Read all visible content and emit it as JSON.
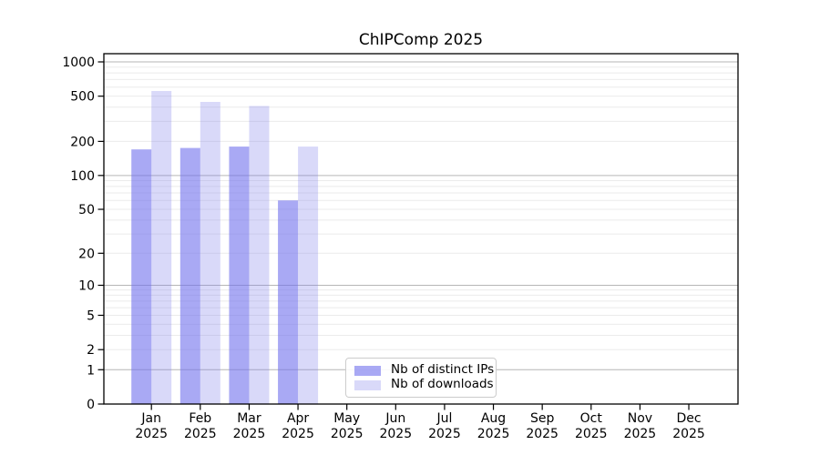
{
  "chart_data": {
    "type": "bar",
    "title": "ChIPComp 2025",
    "categories": [
      "Jan",
      "Feb",
      "Mar",
      "Apr",
      "May",
      "Jun",
      "Jul",
      "Aug",
      "Sep",
      "Oct",
      "Nov",
      "Dec"
    ],
    "x_tick_second_line": "2025",
    "series": [
      {
        "name": "Nb of distinct IPs",
        "color_hex": "#a9a9f4",
        "color_rgba": "rgba(112,112,237,0.6)",
        "values": [
          170,
          175,
          180,
          60,
          0,
          0,
          0,
          0,
          0,
          0,
          0,
          0
        ]
      },
      {
        "name": "Nb of downloads",
        "color_hex": "#d9d9f9",
        "color_rgba": "rgba(128,128,235,0.3)",
        "values": [
          555,
          445,
          410,
          180,
          0,
          0,
          0,
          0,
          0,
          0,
          0,
          0
        ]
      }
    ],
    "xlabel": "",
    "ylabel": "",
    "y_ticks": [
      0,
      1,
      2,
      5,
      10,
      20,
      50,
      100,
      200,
      500,
      1000
    ],
    "y_scale": "log10(1+x)",
    "ylim": [
      0,
      1180
    ],
    "grid": "horizontal major+minor",
    "legend_position": "lower center",
    "colors": {
      "major_gridline": "#b6b6b6",
      "minor_gridline": "#ebebeb",
      "axis_frame": "#000000",
      "background": "#ffffff"
    }
  }
}
